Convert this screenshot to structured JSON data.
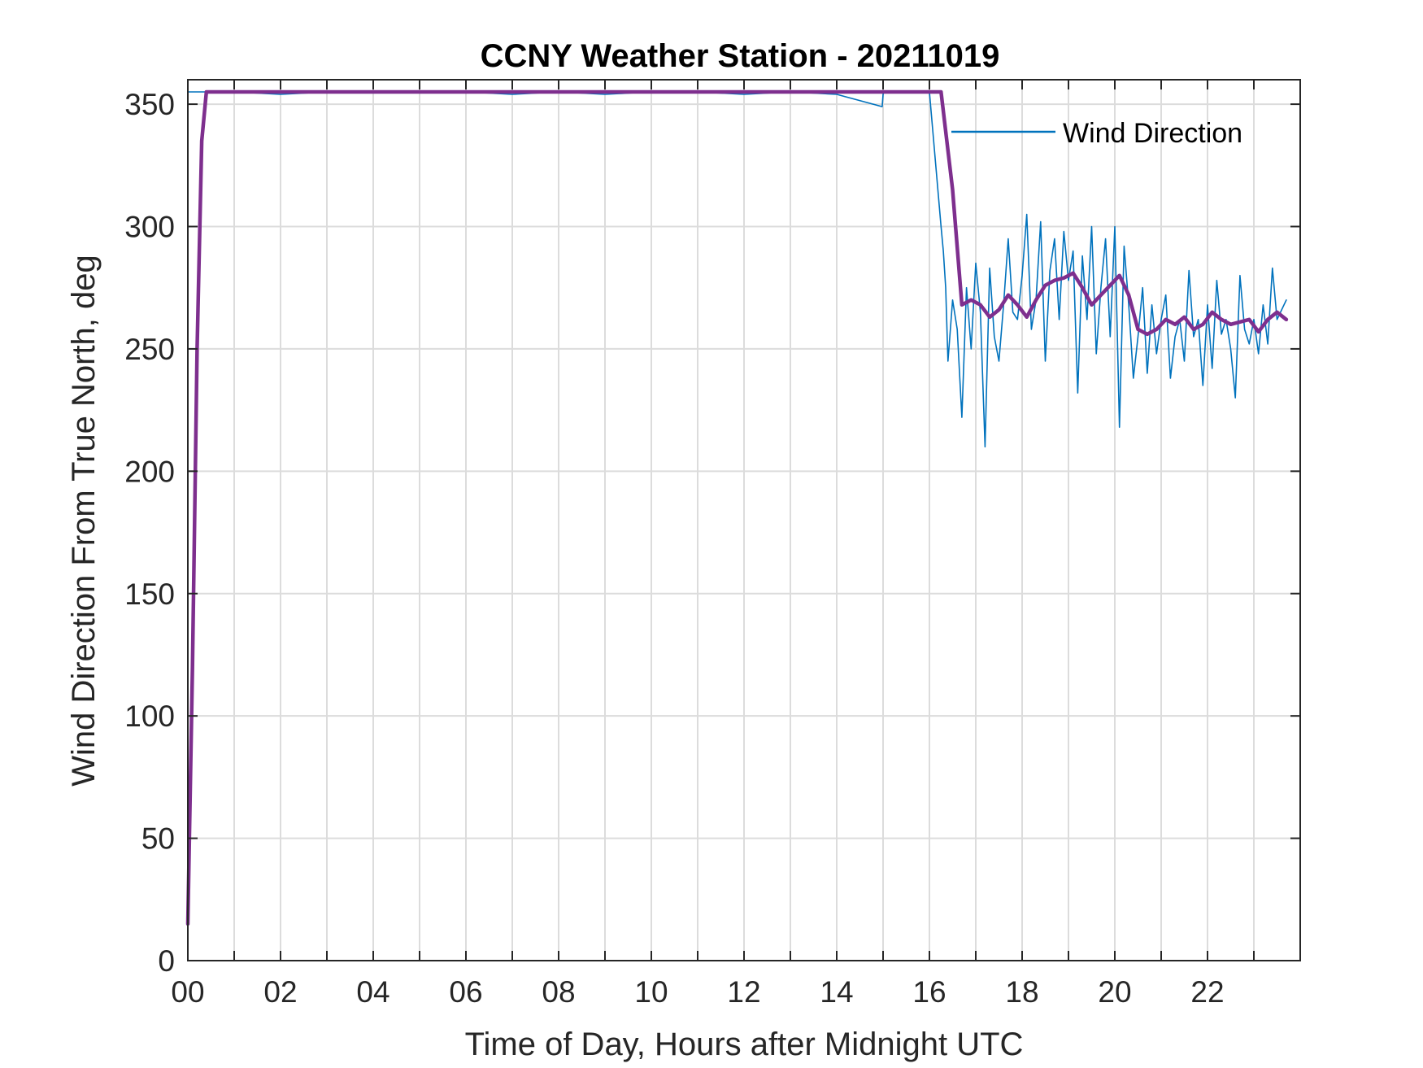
{
  "chart_data": {
    "type": "line",
    "title": "CCNY Weather Station - 20211019",
    "xlabel": "Time of Day, Hours after Midnight UTC",
    "ylabel": "Wind Direction From True North, deg",
    "xlim": [
      0,
      24
    ],
    "ylim": [
      0,
      360
    ],
    "x_ticks": [
      0,
      2,
      4,
      6,
      8,
      10,
      12,
      14,
      16,
      18,
      20,
      22
    ],
    "x_tick_labels": [
      "00",
      "02",
      "04",
      "06",
      "08",
      "10",
      "12",
      "14",
      "16",
      "18",
      "20",
      "22"
    ],
    "y_ticks": [
      0,
      50,
      100,
      150,
      200,
      250,
      300,
      350
    ],
    "y_tick_labels": [
      "0",
      "50",
      "100",
      "150",
      "200",
      "250",
      "300",
      "350"
    ],
    "grid": true,
    "legend_position": "top-right",
    "series": [
      {
        "name": "Wind Direction",
        "color": "#0072BD",
        "x": [
          0.0,
          0.05,
          0.1,
          0.2,
          0.3,
          0.4,
          1.0,
          2.0,
          3.0,
          4.0,
          5.0,
          6.0,
          7.0,
          8.0,
          9.0,
          10.0,
          11.0,
          12.0,
          13.0,
          14.0,
          14.98,
          15.0,
          15.02,
          16.0,
          16.25,
          16.3,
          16.35,
          16.4,
          16.5,
          16.6,
          16.7,
          16.8,
          16.9,
          17.0,
          17.1,
          17.2,
          17.3,
          17.4,
          17.5,
          17.6,
          17.7,
          17.8,
          17.9,
          18.0,
          18.1,
          18.2,
          18.3,
          18.4,
          18.5,
          18.6,
          18.7,
          18.8,
          18.9,
          19.0,
          19.1,
          19.2,
          19.3,
          19.4,
          19.5,
          19.6,
          19.7,
          19.8,
          19.9,
          20.0,
          20.1,
          20.2,
          20.3,
          20.4,
          20.5,
          20.6,
          20.7,
          20.8,
          20.9,
          21.0,
          21.1,
          21.2,
          21.3,
          21.4,
          21.5,
          21.6,
          21.7,
          21.8,
          21.9,
          22.0,
          22.1,
          22.2,
          22.3,
          22.4,
          22.5,
          22.6,
          22.7,
          22.8,
          22.9,
          23.0,
          23.1,
          23.2,
          23.3,
          23.4,
          23.5,
          23.7
        ],
        "values": [
          355,
          355,
          355,
          355,
          355,
          355,
          355,
          354,
          355,
          355,
          355,
          355,
          354,
          355,
          354,
          355,
          355,
          354,
          355,
          354,
          349,
          354,
          355,
          355,
          300,
          290,
          275,
          245,
          270,
          258,
          222,
          275,
          250,
          285,
          265,
          210,
          283,
          255,
          245,
          268,
          295,
          265,
          262,
          280,
          305,
          258,
          270,
          302,
          245,
          282,
          295,
          262,
          298,
          278,
          290,
          232,
          288,
          262,
          300,
          248,
          275,
          295,
          255,
          300,
          218,
          292,
          268,
          238,
          255,
          275,
          240,
          268,
          248,
          262,
          272,
          238,
          255,
          262,
          245,
          282,
          255,
          262,
          235,
          268,
          242,
          278,
          256,
          262,
          250,
          230,
          280,
          258,
          252,
          262,
          248,
          268,
          252,
          283,
          262,
          270
        ]
      },
      {
        "name": "",
        "color": "#7E2F8E",
        "x": [
          0.0,
          0.1,
          0.2,
          0.3,
          0.4,
          1.0,
          2.0,
          4.0,
          6.0,
          8.0,
          10.0,
          12.0,
          14.0,
          15.0,
          16.0,
          16.25,
          16.5,
          16.7,
          16.9,
          17.1,
          17.3,
          17.5,
          17.7,
          17.9,
          18.1,
          18.3,
          18.5,
          18.7,
          18.9,
          19.1,
          19.3,
          19.5,
          19.7,
          19.9,
          20.1,
          20.3,
          20.5,
          20.7,
          20.9,
          21.1,
          21.3,
          21.5,
          21.7,
          21.9,
          22.1,
          22.3,
          22.5,
          22.7,
          22.9,
          23.1,
          23.3,
          23.5,
          23.7
        ],
        "values": [
          15,
          120,
          250,
          335,
          355,
          355,
          355,
          355,
          355,
          355,
          355,
          355,
          355,
          355,
          355,
          355,
          315,
          268,
          270,
          268,
          263,
          266,
          272,
          268,
          263,
          270,
          276,
          278,
          279,
          281,
          275,
          268,
          272,
          276,
          280,
          272,
          258,
          256,
          258,
          262,
          260,
          263,
          258,
          260,
          265,
          262,
          260,
          261,
          262,
          257,
          262,
          265,
          262
        ]
      }
    ]
  }
}
